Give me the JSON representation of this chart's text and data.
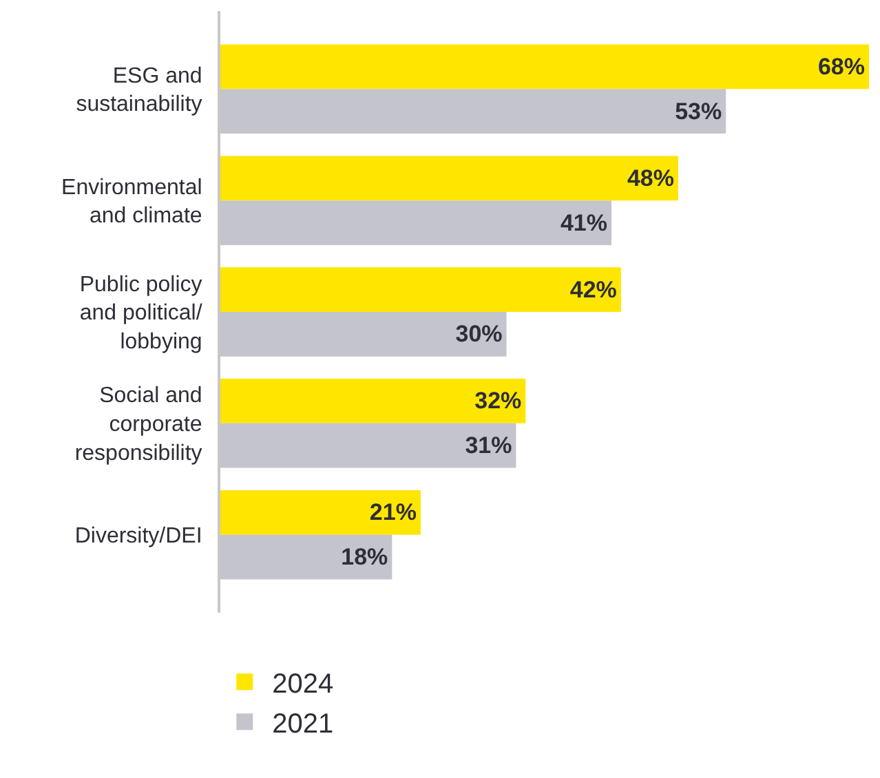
{
  "chart_data": {
    "type": "bar",
    "orientation": "horizontal",
    "categories": [
      "ESG and\nsustainability",
      "Environmental\nand climate",
      "Public policy\nand political/\nlobbying",
      "Social and\ncorporate\nresponsibility",
      "Diversity/DEI"
    ],
    "series": [
      {
        "name": "2024",
        "color": "#ffe600",
        "values": [
          68,
          48,
          42,
          32,
          21
        ],
        "value_labels": [
          "68%",
          "48%",
          "42%",
          "32%",
          "21%"
        ]
      },
      {
        "name": "2021",
        "color": "#c4c4cd",
        "values": [
          53,
          41,
          30,
          31,
          18
        ],
        "value_labels": [
          "53%",
          "41%",
          "30%",
          "31%",
          "18%"
        ]
      }
    ],
    "legend": "bottom"
  }
}
